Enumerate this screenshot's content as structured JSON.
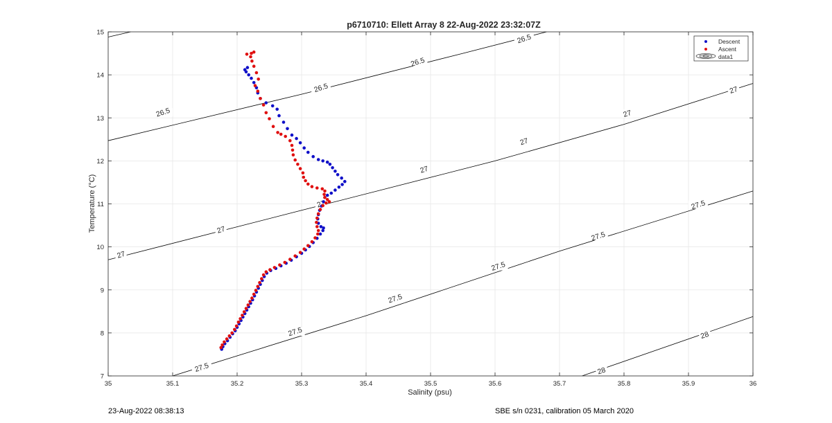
{
  "chart_data": {
    "type": "scatter",
    "title": "p6710710: Ellett Array 8 22-Aug-2022 23:32:07Z",
    "xlabel": "Salinity (psu)",
    "ylabel": "Temperature (°C)",
    "xlim": [
      35,
      36
    ],
    "ylim": [
      7,
      15
    ],
    "xticks": [
      "35",
      "35.1",
      "35.2",
      "35.3",
      "35.4",
      "35.5",
      "35.6",
      "35.7",
      "35.8",
      "35.9",
      "36"
    ],
    "yticks": [
      "7",
      "8",
      "9",
      "10",
      "11",
      "12",
      "13",
      "14",
      "15"
    ],
    "grid": true,
    "legend_position": "top-right",
    "legend": [
      "Descent",
      "Ascent",
      "data1"
    ],
    "colors": {
      "descent": "#1010c8",
      "ascent": "#e01010",
      "contour": "#000000",
      "grid": "#e6e6e6"
    },
    "contour_levels": [
      {
        "level": "26.5",
        "labels": [
          {
            "text": "26.5",
            "x": 35.085,
            "y": 13.13
          },
          {
            "text": "26.5",
            "x": 35.33,
            "y": 13.7
          },
          {
            "text": "26.5",
            "x": 35.48,
            "y": 14.3
          },
          {
            "text": "26.5",
            "x": 35.645,
            "y": 14.84
          }
        ]
      },
      {
        "level": "27",
        "labels": [
          {
            "text": "27",
            "x": 35.02,
            "y": 9.82
          },
          {
            "text": "27",
            "x": 35.175,
            "y": 10.4
          },
          {
            "text": "27",
            "x": 35.33,
            "y": 11.0
          },
          {
            "text": "27",
            "x": 35.49,
            "y": 11.8
          },
          {
            "text": "27",
            "x": 35.645,
            "y": 12.45
          },
          {
            "text": "27",
            "x": 35.805,
            "y": 13.1
          },
          {
            "text": "27",
            "x": 35.97,
            "y": 13.65
          }
        ]
      },
      {
        "level": "27.5",
        "labels": [
          {
            "text": "27.5",
            "x": 35.145,
            "y": 7.2
          },
          {
            "text": "27.5",
            "x": 35.29,
            "y": 8.03
          },
          {
            "text": "27.5",
            "x": 35.445,
            "y": 8.8
          },
          {
            "text": "27.5",
            "x": 35.605,
            "y": 9.55
          },
          {
            "text": "27.5",
            "x": 35.76,
            "y": 10.25
          },
          {
            "text": "27.5",
            "x": 35.915,
            "y": 10.98
          }
        ]
      },
      {
        "level": "28",
        "labels": [
          {
            "text": "28",
            "x": 35.765,
            "y": 7.12
          },
          {
            "text": "28",
            "x": 35.925,
            "y": 7.95
          }
        ]
      }
    ],
    "contour_lines": [
      {
        "level": "26.5",
        "points": [
          [
            35,
            14.88
          ],
          [
            35.035,
            15
          ]
        ]
      },
      {
        "level": "26.5",
        "points": [
          [
            35,
            12.47
          ],
          [
            35.3,
            13.55
          ],
          [
            35.55,
            14.5
          ],
          [
            35.68,
            15
          ]
        ]
      },
      {
        "level": "27",
        "points": [
          [
            35,
            9.7
          ],
          [
            35.3,
            10.85
          ],
          [
            35.6,
            12.0
          ],
          [
            35.8,
            12.85
          ],
          [
            36,
            13.8
          ]
        ]
      },
      {
        "level": "27.5",
        "points": [
          [
            35.1,
            7
          ],
          [
            35.4,
            8.4
          ],
          [
            35.7,
            9.9
          ],
          [
            36,
            11.3
          ]
        ]
      },
      {
        "level": "28",
        "points": [
          [
            35.735,
            7
          ],
          [
            36,
            8.38
          ]
        ]
      }
    ],
    "series": [
      {
        "name": "Descent",
        "points": [
          [
            35.176,
            7.62
          ],
          [
            35.178,
            7.68
          ],
          [
            35.181,
            7.75
          ],
          [
            35.185,
            7.82
          ],
          [
            35.189,
            7.9
          ],
          [
            35.193,
            7.98
          ],
          [
            35.197,
            8.05
          ],
          [
            35.2,
            8.13
          ],
          [
            35.203,
            8.21
          ],
          [
            35.206,
            8.29
          ],
          [
            35.209,
            8.37
          ],
          [
            35.212,
            8.45
          ],
          [
            35.215,
            8.53
          ],
          [
            35.218,
            8.61
          ],
          [
            35.221,
            8.69
          ],
          [
            35.224,
            8.77
          ],
          [
            35.227,
            8.86
          ],
          [
            35.23,
            8.95
          ],
          [
            35.233,
            9.04
          ],
          [
            35.236,
            9.13
          ],
          [
            35.239,
            9.22
          ],
          [
            35.242,
            9.31
          ],
          [
            35.246,
            9.39
          ],
          [
            35.252,
            9.45
          ],
          [
            35.26,
            9.5
          ],
          [
            35.268,
            9.56
          ],
          [
            35.276,
            9.62
          ],
          [
            35.284,
            9.69
          ],
          [
            35.292,
            9.77
          ],
          [
            35.3,
            9.85
          ],
          [
            35.306,
            9.93
          ],
          [
            35.312,
            10.01
          ],
          [
            35.318,
            10.1
          ],
          [
            35.324,
            10.2
          ],
          [
            35.329,
            10.3
          ],
          [
            35.333,
            10.38
          ],
          [
            35.334,
            10.44
          ],
          [
            35.33,
            10.47
          ],
          [
            35.326,
            10.55
          ],
          [
            35.325,
            10.65
          ],
          [
            35.326,
            10.75
          ],
          [
            35.328,
            10.85
          ],
          [
            35.331,
            10.95
          ],
          [
            35.334,
            11.05
          ],
          [
            35.336,
            11.15
          ],
          [
            35.34,
            11.2
          ],
          [
            35.346,
            11.25
          ],
          [
            35.352,
            11.32
          ],
          [
            35.358,
            11.39
          ],
          [
            35.363,
            11.45
          ],
          [
            35.367,
            11.52
          ],
          [
            35.362,
            11.6
          ],
          [
            35.356,
            11.68
          ],
          [
            35.352,
            11.76
          ],
          [
            35.348,
            11.84
          ],
          [
            35.344,
            11.92
          ],
          [
            35.34,
            11.97
          ],
          [
            35.333,
            12.0
          ],
          [
            35.326,
            12.03
          ],
          [
            35.318,
            12.1
          ],
          [
            35.31,
            12.2
          ],
          [
            35.304,
            12.3
          ],
          [
            35.298,
            12.42
          ],
          [
            35.292,
            12.52
          ],
          [
            35.285,
            12.6
          ],
          [
            35.278,
            12.75
          ],
          [
            35.272,
            12.9
          ],
          [
            35.265,
            13.05
          ],
          [
            35.262,
            13.2
          ],
          [
            35.255,
            13.28
          ],
          [
            35.245,
            13.35
          ],
          [
            35.236,
            13.45
          ],
          [
            35.232,
            13.58
          ],
          [
            35.23,
            13.7
          ],
          [
            35.226,
            13.82
          ],
          [
            35.222,
            13.92
          ],
          [
            35.218,
            14.0
          ],
          [
            35.214,
            14.07
          ],
          [
            35.212,
            14.12
          ],
          [
            35.216,
            14.17
          ]
        ]
      },
      {
        "name": "Ascent",
        "points": [
          [
            35.175,
            7.66
          ],
          [
            35.177,
            7.72
          ],
          [
            35.18,
            7.79
          ],
          [
            35.184,
            7.86
          ],
          [
            35.188,
            7.93
          ],
          [
            35.192,
            8.0
          ],
          [
            35.196,
            8.08
          ],
          [
            35.199,
            8.16
          ],
          [
            35.202,
            8.25
          ],
          [
            35.205,
            8.33
          ],
          [
            35.208,
            8.41
          ],
          [
            35.211,
            8.49
          ],
          [
            35.214,
            8.57
          ],
          [
            35.217,
            8.65
          ],
          [
            35.22,
            8.73
          ],
          [
            35.223,
            8.81
          ],
          [
            35.226,
            8.9
          ],
          [
            35.229,
            8.99
          ],
          [
            35.232,
            9.08
          ],
          [
            35.235,
            9.17
          ],
          [
            35.238,
            9.26
          ],
          [
            35.241,
            9.35
          ],
          [
            35.245,
            9.42
          ],
          [
            35.251,
            9.47
          ],
          [
            35.258,
            9.52
          ],
          [
            35.266,
            9.58
          ],
          [
            35.274,
            9.64
          ],
          [
            35.282,
            9.71
          ],
          [
            35.29,
            9.79
          ],
          [
            35.298,
            9.87
          ],
          [
            35.304,
            9.95
          ],
          [
            35.31,
            10.03
          ],
          [
            35.316,
            10.12
          ],
          [
            35.321,
            10.21
          ],
          [
            35.325,
            10.3
          ],
          [
            35.326,
            10.38
          ],
          [
            35.324,
            10.47
          ],
          [
            35.323,
            10.57
          ],
          [
            35.324,
            10.67
          ],
          [
            35.326,
            10.77
          ],
          [
            35.329,
            10.87
          ],
          [
            35.333,
            10.96
          ],
          [
            35.338,
            11.02
          ],
          [
            35.343,
            11.05
          ],
          [
            35.34,
            11.1
          ],
          [
            35.336,
            11.15
          ],
          [
            35.335,
            11.22
          ],
          [
            35.336,
            11.3
          ],
          [
            35.332,
            11.35
          ],
          [
            35.324,
            11.37
          ],
          [
            35.316,
            11.4
          ],
          [
            35.31,
            11.46
          ],
          [
            35.306,
            11.54
          ],
          [
            35.303,
            11.62
          ],
          [
            35.302,
            11.72
          ],
          [
            35.298,
            11.82
          ],
          [
            35.294,
            11.92
          ],
          [
            35.29,
            12.02
          ],
          [
            35.287,
            12.14
          ],
          [
            35.286,
            12.25
          ],
          [
            35.285,
            12.36
          ],
          [
            35.282,
            12.47
          ],
          [
            35.275,
            12.57
          ],
          [
            35.268,
            12.62
          ],
          [
            35.263,
            12.66
          ],
          [
            35.256,
            12.8
          ],
          [
            35.25,
            12.98
          ],
          [
            35.245,
            13.12
          ],
          [
            35.241,
            13.3
          ],
          [
            35.236,
            13.45
          ],
          [
            35.232,
            13.62
          ],
          [
            35.228,
            13.75
          ],
          [
            35.233,
            13.9
          ],
          [
            35.23,
            14.05
          ],
          [
            35.226,
            14.2
          ],
          [
            35.223,
            14.32
          ],
          [
            35.221,
            14.42
          ],
          [
            35.222,
            14.5
          ],
          [
            35.226,
            14.53
          ],
          [
            35.215,
            14.48
          ]
        ]
      }
    ]
  },
  "footer": {
    "left": "23-Aug-2022 08:38:13",
    "right": "SBE s/n 0231, calibration 05 March 2020"
  }
}
